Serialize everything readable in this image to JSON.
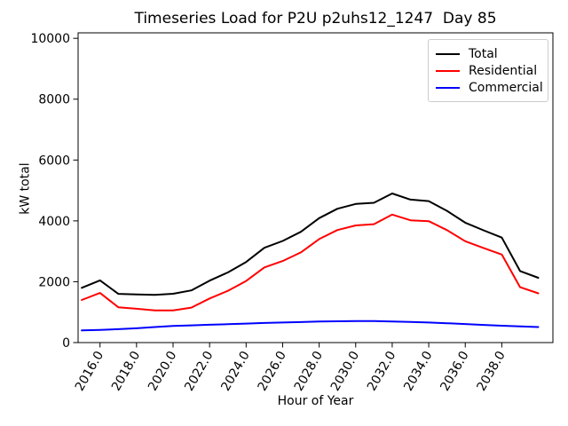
{
  "chart_data": {
    "type": "line",
    "title": "Timeseries Load for P2U p2uhs12_1247  Day 85",
    "xlabel": "Hour of Year",
    "ylabel": "kW total",
    "grid": false,
    "xlim": [
      2014.8,
      2040.8
    ],
    "ylim": [
      0,
      10180
    ],
    "x": [
      2015,
      2016,
      2017,
      2018,
      2019,
      2020,
      2021,
      2022,
      2023,
      2024,
      2025,
      2026,
      2027,
      2028,
      2029,
      2030,
      2031,
      2032,
      2033,
      2034,
      2035,
      2036,
      2037,
      2038,
      2039,
      2040
    ],
    "series": [
      {
        "name": "Total",
        "color": "#000000",
        "values": [
          1800,
          2045,
          1600,
          1580,
          1570,
          1605,
          1715,
          2035,
          2305,
          2650,
          3115,
          3340,
          3640,
          4090,
          4400,
          4555,
          4595,
          4900,
          4700,
          4650,
          4330,
          3940,
          3690,
          3450,
          2350,
          2130
        ]
      },
      {
        "name": "Residential",
        "color": "#ff0000",
        "values": [
          1400,
          1630,
          1160,
          1110,
          1060,
          1060,
          1150,
          1450,
          1700,
          2025,
          2470,
          2680,
          2965,
          3400,
          3700,
          3850,
          3890,
          4205,
          4020,
          3990,
          3695,
          3330,
          3110,
          2895,
          1820,
          1620
        ]
      },
      {
        "name": "Commercial",
        "color": "#0000ff",
        "values": [
          400,
          415,
          440,
          470,
          510,
          545,
          565,
          585,
          605,
          625,
          645,
          660,
          675,
          690,
          700,
          705,
          705,
          695,
          680,
          660,
          635,
          610,
          580,
          555,
          530,
          510
        ]
      }
    ],
    "x_ticks": {
      "values": [
        2016,
        2018,
        2020,
        2022,
        2024,
        2026,
        2028,
        2030,
        2032,
        2034,
        2036,
        2038
      ],
      "labels": [
        "2016.0",
        "2018.0",
        "2020.0",
        "2022.0",
        "2024.0",
        "2026.0",
        "2028.0",
        "2030.0",
        "2032.0",
        "2034.0",
        "2036.0",
        "2038.0"
      ]
    },
    "y_ticks": {
      "values": [
        0,
        2000,
        4000,
        6000,
        8000,
        10000
      ],
      "labels": [
        "0",
        "2000",
        "4000",
        "6000",
        "8000",
        "10000"
      ]
    },
    "legend": {
      "position": "upper right",
      "entries": [
        "Total",
        "Residential",
        "Commercial"
      ]
    }
  }
}
